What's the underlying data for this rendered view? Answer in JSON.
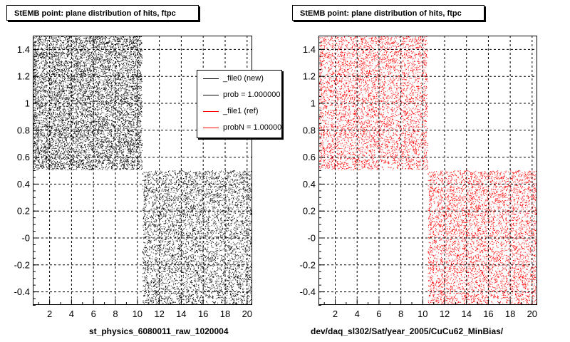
{
  "panels": [
    {
      "title": "StEMB point: plane distribution of hits, ftpc",
      "caption": "st_physics_6080011_raw_1020004",
      "color": "#000000"
    },
    {
      "title": "StEMB point: plane distribution of hits, ftpc",
      "caption": "dev/daq_sl302/Sat/year_2005/CuCu62_MinBias/",
      "color": "#ff0000"
    }
  ],
  "legend": {
    "entries": [
      {
        "label": "_file0 (new)",
        "color": "#000000"
      },
      {
        "label": "prob = 1.000000",
        "color": "#000000"
      },
      {
        "label": "_file1 (ref)",
        "color": "#ff0000"
      },
      {
        "label": "probN = 1.000000",
        "color": "#ff0000"
      }
    ]
  },
  "chart_data": [
    {
      "type": "scatter",
      "title": "StEMB point: plane distribution of hits, ftpc",
      "xlabel": "st_physics_6080011_raw_1020004",
      "ylabel": "",
      "xlim": [
        0.5,
        20.5
      ],
      "ylim": [
        -0.5,
        1.5
      ],
      "grid": true,
      "xticks": [
        2,
        4,
        6,
        8,
        10,
        12,
        14,
        16,
        18,
        20
      ],
      "yticks": [
        "-0.4",
        "-0.2",
        "-0",
        "0.2",
        "0.4",
        "0.6",
        "0.8",
        "1",
        "1.2",
        "1.4"
      ],
      "regions": [
        {
          "x": [
            0.5,
            10.5
          ],
          "y": [
            0.5,
            1.5
          ]
        },
        {
          "x": [
            10.5,
            20.5
          ],
          "y": [
            -0.5,
            0.5
          ]
        }
      ],
      "series": [
        {
          "name": "_file0 (new)",
          "color": "#000000"
        }
      ]
    },
    {
      "type": "scatter",
      "title": "StEMB point: plane distribution of hits, ftpc",
      "xlabel": "dev/daq_sl302/Sat/year_2005/CuCu62_MinBias/",
      "ylabel": "",
      "xlim": [
        0.5,
        20.5
      ],
      "ylim": [
        -0.5,
        1.5
      ],
      "grid": true,
      "xticks": [
        2,
        4,
        6,
        8,
        10,
        12,
        14,
        16,
        18,
        20
      ],
      "yticks": [
        "-0.4",
        "-0.2",
        "-0",
        "0.2",
        "0.4",
        "0.6",
        "0.8",
        "1",
        "1.2",
        "1.4"
      ],
      "regions": [
        {
          "x": [
            0.5,
            10.5
          ],
          "y": [
            0.5,
            1.5
          ]
        },
        {
          "x": [
            10.5,
            20.5
          ],
          "y": [
            -0.5,
            0.5
          ]
        }
      ],
      "series": [
        {
          "name": "_file1 (ref)",
          "color": "#ff0000"
        }
      ]
    }
  ]
}
